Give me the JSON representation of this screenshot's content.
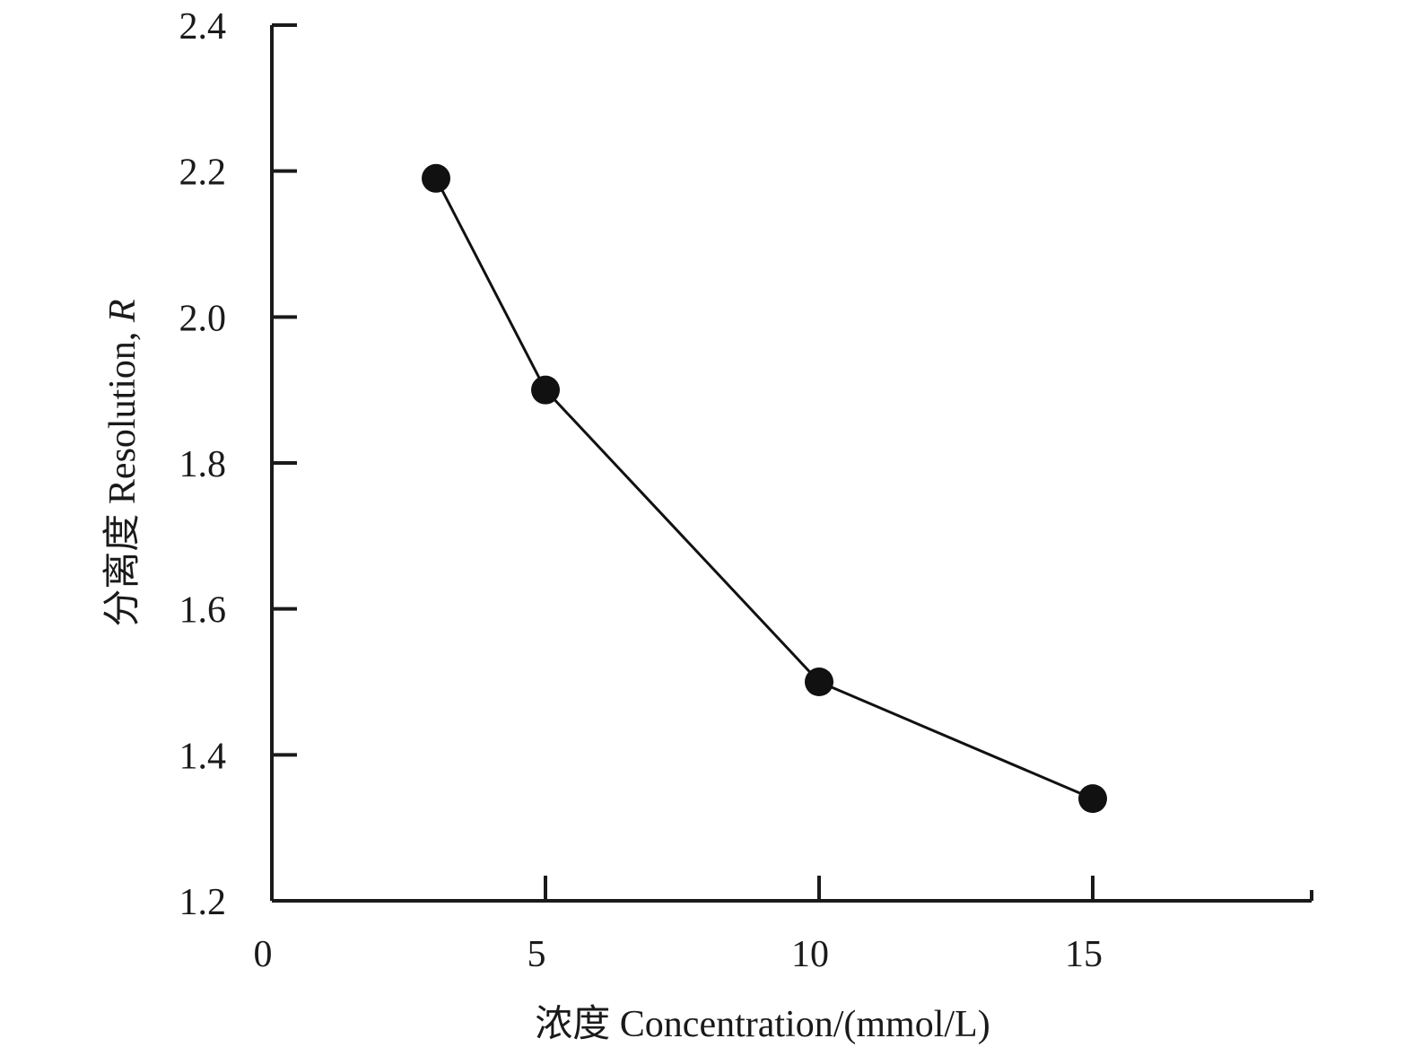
{
  "chart_data": {
    "type": "line",
    "x": [
      3,
      5,
      10,
      15
    ],
    "values": [
      2.19,
      1.9,
      1.5,
      1.34
    ],
    "xlabel": "浓度 Concentration/(mmol/L)",
    "ylabel_prefix": "分离度 Resolution, ",
    "ylabel_italic": "R",
    "xlim": [
      0,
      19
    ],
    "ylim": [
      1.2,
      2.4
    ],
    "x_ticks": [
      0,
      5,
      10,
      15
    ],
    "x_tick_labels": [
      "0",
      "5",
      "10",
      "15"
    ],
    "y_ticks": [
      1.2,
      1.4,
      1.6,
      1.8,
      2.0,
      2.2,
      2.4
    ],
    "y_tick_labels": [
      "1.2",
      "1.4",
      "1.6",
      "1.8",
      "2.0",
      "2.2",
      "2.4"
    ],
    "grid": false,
    "colors": {
      "line": "#111111",
      "marker": "#111111",
      "axis": "#1a1a1a"
    }
  }
}
